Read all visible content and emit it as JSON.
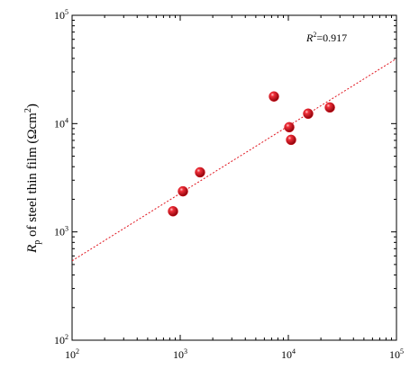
{
  "chart_data": {
    "type": "scatter",
    "xscale": "log",
    "yscale": "log",
    "xlim": [
      100,
      100000
    ],
    "ylim": [
      100,
      100000
    ],
    "xticks": [
      {
        "value": 100,
        "label": "10",
        "exponent": "2"
      },
      {
        "value": 1000,
        "label": "10",
        "exponent": "3"
      },
      {
        "value": 10000,
        "label": "10",
        "exponent": "4"
      },
      {
        "value": 100000,
        "label": "10",
        "exponent": "5"
      }
    ],
    "yticks": [
      {
        "value": 100,
        "label": "10",
        "exponent": "2"
      },
      {
        "value": 1000,
        "label": "10",
        "exponent": "3"
      },
      {
        "value": 10000,
        "label": "10",
        "exponent": "4"
      },
      {
        "value": 100000,
        "label": "10",
        "exponent": "5"
      }
    ],
    "ylabel": {
      "symbol": "R",
      "subscript": "p",
      "text": " of steel  thin film (Ωcm",
      "superscript": "2",
      "end": ")"
    },
    "annotation": {
      "symbol": "R",
      "superscript": "2",
      "text": "=0.917"
    },
    "series": [
      {
        "color": "#e0141e",
        "x": [
          858,
          1060,
          1525,
          7360,
          10200,
          10600,
          15250,
          24200
        ],
        "values": [
          1550,
          2370,
          3550,
          17800,
          9260,
          7080,
          12350,
          14100
        ]
      }
    ],
    "fit": {
      "color": "#e0141e",
      "x": [
        100,
        100000
      ],
      "y": [
        541,
        39800
      ]
    }
  }
}
